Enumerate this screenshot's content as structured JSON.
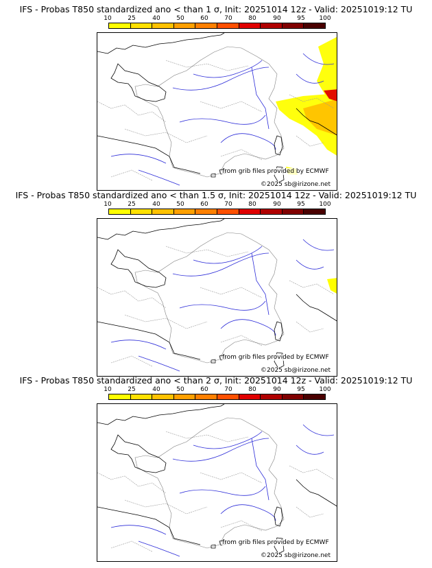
{
  "scale": {
    "ticks": [
      "10",
      "25",
      "40",
      "50",
      "60",
      "70",
      "80",
      "90",
      "95",
      "100"
    ],
    "colors": [
      "#ffff00",
      "#ffe100",
      "#ffc200",
      "#ffa000",
      "#ff8000",
      "#ff5000",
      "#e00000",
      "#b00000",
      "#800000",
      "#4a0000"
    ]
  },
  "panels": [
    {
      "title": "IFS - Probas T850  standardized ano < than 1 σ, Init: 20251014 12z - Valid: 20251019:12 TU",
      "source": "from grib files provided by ECMWF",
      "copyright": "©2025 sb@irizone.net",
      "anomaly": "strong"
    },
    {
      "title": "IFS - Probas T850  standardized ano < than 1.5 σ, Init: 20251014 12z - Valid: 20251019:12 TU",
      "source": "from grib files provided by ECMWF",
      "copyright": "©2025 sb@irizone.net",
      "anomaly": "weak"
    },
    {
      "title": "IFS - Probas T850  standardized ano < than 2 σ, Init: 20251014 12z - Valid: 20251019:12 TU",
      "source": "from grib files provided by ECMWF",
      "copyright": "©2025 sb@irizone.net",
      "anomaly": "none"
    }
  ]
}
